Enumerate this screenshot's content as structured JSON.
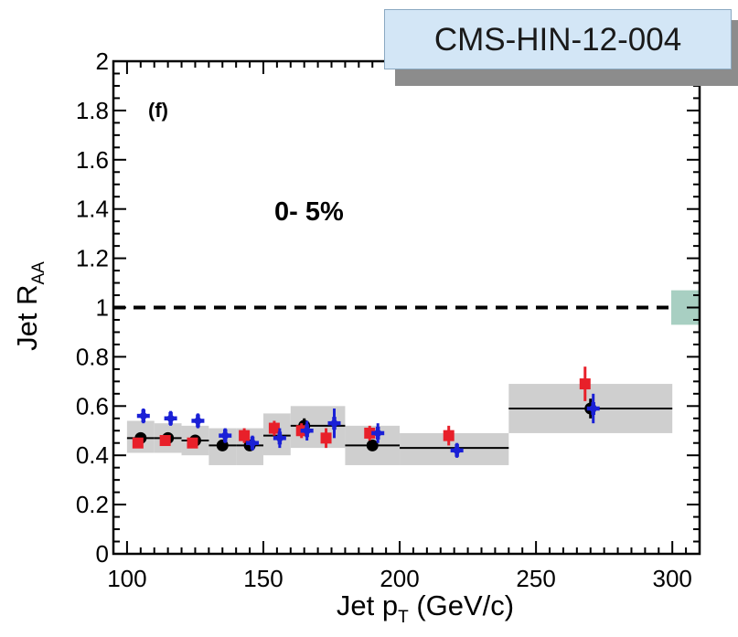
{
  "tag": {
    "label": "CMS-HIN-12-004"
  },
  "chart_data": {
    "type": "scatter",
    "panel_label": "(f)",
    "centrality_label": "0- 5%",
    "ylabel_main": "Jet R",
    "ylabel_sub": "AA",
    "xlabel_main": "Jet p",
    "xlabel_sub": "T",
    "xlabel_unit": " (GeV/c)",
    "xlim": [
      95,
      310
    ],
    "ylim": [
      0,
      2
    ],
    "x_ticks": [
      100,
      150,
      200,
      250,
      300
    ],
    "y_ticks": [
      0,
      0.2,
      0.4,
      0.6,
      0.8,
      1,
      1.2,
      1.4,
      1.6,
      1.8,
      2
    ],
    "y_tick_labels": [
      "0",
      "0.2",
      "0.4",
      "0.6",
      "0.8",
      "1",
      "1.2",
      "1.4",
      "1.6",
      "1.8",
      "2"
    ],
    "reference_line": {
      "y": 1.0,
      "style": "dashed"
    },
    "normalization_box": {
      "ylow": 0.93,
      "yhigh": 1.07,
      "color": "#a8cfc2"
    },
    "colors": {
      "black": "#000000",
      "red": "#e8202a",
      "blue": "#1a20d6",
      "band": "#cfcfcf"
    },
    "series": [
      {
        "color": "black",
        "marker": "circle",
        "bins": [
          {
            "xlo": 100,
            "xhi": 110,
            "y": 0.47,
            "sys_lo": 0.41,
            "sys_hi": 0.54
          },
          {
            "xlo": 110,
            "xhi": 120,
            "y": 0.47,
            "sys_lo": 0.41,
            "sys_hi": 0.53
          },
          {
            "xlo": 120,
            "xhi": 130,
            "y": 0.46,
            "sys_lo": 0.4,
            "sys_hi": 0.52
          },
          {
            "xlo": 130,
            "xhi": 140,
            "y": 0.44,
            "sys_lo": 0.36,
            "sys_hi": 0.51
          },
          {
            "xlo": 140,
            "xhi": 150,
            "y": 0.44,
            "sys_lo": 0.36,
            "sys_hi": 0.51
          },
          {
            "xlo": 150,
            "xhi": 160,
            "y": 0.48,
            "sys_lo": 0.4,
            "sys_hi": 0.57
          },
          {
            "xlo": 160,
            "xhi": 180,
            "y": 0.52,
            "sys_lo": 0.43,
            "sys_hi": 0.6
          },
          {
            "xlo": 180,
            "xhi": 200,
            "y": 0.44,
            "sys_lo": 0.36,
            "sys_hi": 0.52
          },
          {
            "xlo": 200,
            "xhi": 240,
            "y": 0.43,
            "sys_lo": 0.36,
            "sys_hi": 0.49
          },
          {
            "xlo": 240,
            "xhi": 300,
            "y": 0.59,
            "sys_lo": 0.49,
            "sys_hi": 0.69
          }
        ],
        "points": [
          {
            "x": 105,
            "y": 0.47,
            "err": 0.02
          },
          {
            "x": 115,
            "y": 0.47,
            "err": 0.02
          },
          {
            "x": 125,
            "y": 0.46,
            "err": 0.02
          },
          {
            "x": 135,
            "y": 0.44,
            "err": 0.02
          },
          {
            "x": 145,
            "y": 0.44,
            "err": 0.02
          },
          {
            "x": 165,
            "y": 0.52,
            "err": 0.03
          },
          {
            "x": 190,
            "y": 0.44,
            "err": 0.02
          },
          {
            "x": 270,
            "y": 0.59,
            "err": 0.04
          }
        ]
      },
      {
        "color": "red",
        "marker": "square",
        "points": [
          {
            "x": 104,
            "y": 0.45,
            "err": 0.02
          },
          {
            "x": 114,
            "y": 0.46,
            "err": 0.02
          },
          {
            "x": 124,
            "y": 0.45,
            "err": 0.02
          },
          {
            "x": 143,
            "y": 0.48,
            "err": 0.03
          },
          {
            "x": 154,
            "y": 0.51,
            "err": 0.03
          },
          {
            "x": 164,
            "y": 0.5,
            "err": 0.03
          },
          {
            "x": 173,
            "y": 0.47,
            "err": 0.04
          },
          {
            "x": 189,
            "y": 0.49,
            "err": 0.03
          },
          {
            "x": 218,
            "y": 0.48,
            "err": 0.04
          },
          {
            "x": 268,
            "y": 0.69,
            "err": 0.07
          }
        ]
      },
      {
        "color": "blue",
        "marker": "cross",
        "points": [
          {
            "x": 106,
            "y": 0.56,
            "err": 0.03
          },
          {
            "x": 116,
            "y": 0.55,
            "err": 0.03
          },
          {
            "x": 126,
            "y": 0.54,
            "err": 0.03
          },
          {
            "x": 136,
            "y": 0.48,
            "err": 0.03
          },
          {
            "x": 146,
            "y": 0.45,
            "err": 0.03
          },
          {
            "x": 156,
            "y": 0.47,
            "err": 0.04
          },
          {
            "x": 166,
            "y": 0.5,
            "err": 0.04
          },
          {
            "x": 176,
            "y": 0.53,
            "err": 0.06
          },
          {
            "x": 192,
            "y": 0.49,
            "err": 0.04
          },
          {
            "x": 221,
            "y": 0.42,
            "err": 0.03
          },
          {
            "x": 271,
            "y": 0.59,
            "err": 0.06
          }
        ]
      }
    ]
  }
}
